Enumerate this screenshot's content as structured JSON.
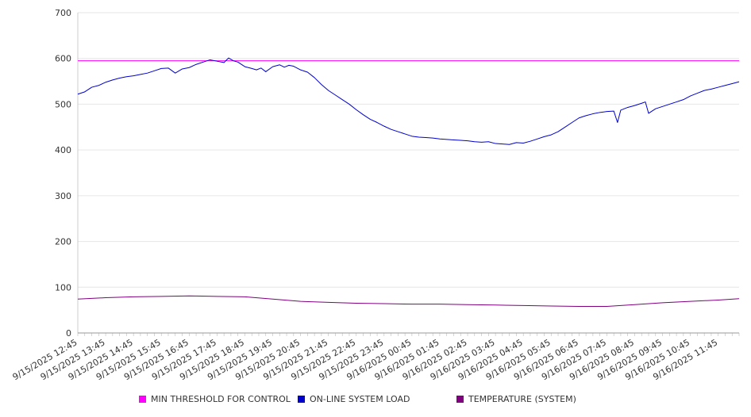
{
  "chart_data": {
    "type": "line",
    "title": "",
    "xlabel": "",
    "ylabel": "",
    "ylim": [
      0,
      700
    ],
    "y_ticks": [
      0,
      100,
      200,
      300,
      400,
      500,
      600,
      700
    ],
    "x_start": "9/15/2025 12:45",
    "x_end": "9/16/2025 12:30",
    "x_tick_labels": [
      "9/15/2025 12:45",
      "9/15/2025 13:45",
      "9/15/2025 14:45",
      "9/15/2025 15:45",
      "9/15/2025 16:45",
      "9/15/2025 17:45",
      "9/15/2025 18:45",
      "9/15/2025 19:45",
      "9/15/2025 20:45",
      "9/15/2025 21:45",
      "9/15/2025 22:45",
      "9/15/2025 23:45",
      "9/16/2025 00:45",
      "9/16/2025 01:45",
      "9/16/2025 02:45",
      "9/16/2025 03:45",
      "9/16/2025 04:45",
      "9/16/2025 05:45",
      "9/16/2025 06:45",
      "9/16/2025 07:45",
      "9/16/2025 08:45",
      "9/16/2025 09:45",
      "9/16/2025 10:45",
      "9/16/2025 11:45"
    ],
    "grid": true,
    "legend_position": "bottom",
    "series": [
      {
        "name": "MIN THRESHOLD FOR CONTROL",
        "color": "#ff00ff",
        "points": [
          [
            "9/15/2025 12:45",
            595
          ],
          [
            "9/16/2025 12:30",
            595
          ]
        ]
      },
      {
        "name": "ON-LINE SYSTEM LOAD",
        "color": "#0000cc",
        "points": [
          [
            "9/15/2025 12:45",
            522
          ],
          [
            "9/15/2025 13:00",
            527
          ],
          [
            "9/15/2025 13:15",
            537
          ],
          [
            "9/15/2025 13:30",
            541
          ],
          [
            "9/15/2025 13:45",
            548
          ],
          [
            "9/15/2025 14:00",
            553
          ],
          [
            "9/15/2025 14:15",
            557
          ],
          [
            "9/15/2025 14:30",
            560
          ],
          [
            "9/15/2025 14:45",
            562
          ],
          [
            "9/15/2025 15:00",
            565
          ],
          [
            "9/15/2025 15:15",
            568
          ],
          [
            "9/15/2025 15:30",
            573
          ],
          [
            "9/15/2025 15:45",
            578
          ],
          [
            "9/15/2025 16:00",
            579
          ],
          [
            "9/15/2025 16:15",
            568
          ],
          [
            "9/15/2025 16:30",
            577
          ],
          [
            "9/15/2025 16:45",
            580
          ],
          [
            "9/15/2025 17:00",
            587
          ],
          [
            "9/15/2025 17:15",
            592
          ],
          [
            "9/15/2025 17:30",
            597
          ],
          [
            "9/15/2025 17:45",
            594
          ],
          [
            "9/15/2025 18:00",
            591
          ],
          [
            "9/15/2025 18:10",
            601
          ],
          [
            "9/15/2025 18:20",
            595
          ],
          [
            "9/15/2025 18:30",
            592
          ],
          [
            "9/15/2025 18:45",
            582
          ],
          [
            "9/15/2025 19:00",
            578
          ],
          [
            "9/15/2025 19:10",
            575
          ],
          [
            "9/15/2025 19:20",
            579
          ],
          [
            "9/15/2025 19:30",
            571
          ],
          [
            "9/15/2025 19:45",
            582
          ],
          [
            "9/15/2025 20:00",
            586
          ],
          [
            "9/15/2025 20:10",
            581
          ],
          [
            "9/15/2025 20:20",
            585
          ],
          [
            "9/15/2025 20:30",
            583
          ],
          [
            "9/15/2025 20:45",
            575
          ],
          [
            "9/15/2025 21:00",
            570
          ],
          [
            "9/15/2025 21:15",
            558
          ],
          [
            "9/15/2025 21:30",
            543
          ],
          [
            "9/15/2025 21:45",
            530
          ],
          [
            "9/15/2025 22:00",
            520
          ],
          [
            "9/15/2025 22:15",
            510
          ],
          [
            "9/15/2025 22:30",
            500
          ],
          [
            "9/15/2025 22:45",
            488
          ],
          [
            "9/15/2025 23:00",
            477
          ],
          [
            "9/15/2025 23:15",
            467
          ],
          [
            "9/15/2025 23:30",
            460
          ],
          [
            "9/15/2025 23:45",
            452
          ],
          [
            "9/16/2025 00:00",
            445
          ],
          [
            "9/16/2025 00:15",
            440
          ],
          [
            "9/16/2025 00:30",
            435
          ],
          [
            "9/16/2025 00:45",
            430
          ],
          [
            "9/16/2025 01:00",
            428
          ],
          [
            "9/16/2025 01:15",
            427
          ],
          [
            "9/16/2025 01:30",
            426
          ],
          [
            "9/16/2025 01:45",
            424
          ],
          [
            "9/16/2025 02:00",
            423
          ],
          [
            "9/16/2025 02:15",
            422
          ],
          [
            "9/16/2025 02:30",
            421
          ],
          [
            "9/16/2025 02:45",
            420
          ],
          [
            "9/16/2025 03:00",
            418
          ],
          [
            "9/16/2025 03:15",
            417
          ],
          [
            "9/16/2025 03:30",
            418
          ],
          [
            "9/16/2025 03:45",
            414
          ],
          [
            "9/16/2025 04:00",
            413
          ],
          [
            "9/16/2025 04:15",
            412
          ],
          [
            "9/16/2025 04:30",
            416
          ],
          [
            "9/16/2025 04:45",
            415
          ],
          [
            "9/16/2025 05:00",
            419
          ],
          [
            "9/16/2025 05:15",
            424
          ],
          [
            "9/16/2025 05:30",
            429
          ],
          [
            "9/16/2025 05:45",
            433
          ],
          [
            "9/16/2025 06:00",
            440
          ],
          [
            "9/16/2025 06:15",
            450
          ],
          [
            "9/16/2025 06:30",
            460
          ],
          [
            "9/16/2025 06:45",
            470
          ],
          [
            "9/16/2025 07:00",
            475
          ],
          [
            "9/16/2025 07:15",
            479
          ],
          [
            "9/16/2025 07:30",
            482
          ],
          [
            "9/16/2025 07:45",
            484
          ],
          [
            "9/16/2025 08:00",
            485
          ],
          [
            "9/16/2025 08:08",
            460
          ],
          [
            "9/16/2025 08:15",
            487
          ],
          [
            "9/16/2025 08:30",
            493
          ],
          [
            "9/16/2025 08:45",
            497
          ],
          [
            "9/16/2025 09:00",
            502
          ],
          [
            "9/16/2025 09:08",
            505
          ],
          [
            "9/16/2025 09:15",
            480
          ],
          [
            "9/16/2025 09:30",
            490
          ],
          [
            "9/16/2025 09:45",
            495
          ],
          [
            "9/16/2025 10:00",
            500
          ],
          [
            "9/16/2025 10:15",
            505
          ],
          [
            "9/16/2025 10:30",
            510
          ],
          [
            "9/16/2025 10:45",
            518
          ],
          [
            "9/16/2025 11:00",
            524
          ],
          [
            "9/16/2025 11:15",
            530
          ],
          [
            "9/16/2025 11:30",
            533
          ],
          [
            "9/16/2025 11:45",
            537
          ],
          [
            "9/16/2025 12:00",
            541
          ],
          [
            "9/16/2025 12:15",
            545
          ],
          [
            "9/16/2025 12:30",
            549
          ]
        ]
      },
      {
        "name": "TEMPERATURE (SYSTEM)",
        "color": "#800080",
        "points": [
          [
            "9/15/2025 12:45",
            74
          ],
          [
            "9/15/2025 13:45",
            77
          ],
          [
            "9/15/2025 14:45",
            79
          ],
          [
            "9/15/2025 15:45",
            80
          ],
          [
            "9/15/2025 16:45",
            81
          ],
          [
            "9/15/2025 17:45",
            80
          ],
          [
            "9/15/2025 18:45",
            79
          ],
          [
            "9/15/2025 19:45",
            74
          ],
          [
            "9/15/2025 20:45",
            69
          ],
          [
            "9/15/2025 21:45",
            67
          ],
          [
            "9/15/2025 22:45",
            65
          ],
          [
            "9/15/2025 23:45",
            64
          ],
          [
            "9/16/2025 00:45",
            63
          ],
          [
            "9/16/2025 01:45",
            63
          ],
          [
            "9/16/2025 02:45",
            62
          ],
          [
            "9/16/2025 03:45",
            61
          ],
          [
            "9/16/2025 04:45",
            60
          ],
          [
            "9/16/2025 05:45",
            59
          ],
          [
            "9/16/2025 06:45",
            58
          ],
          [
            "9/16/2025 07:45",
            58
          ],
          [
            "9/16/2025 08:45",
            62
          ],
          [
            "9/16/2025 09:45",
            66
          ],
          [
            "9/16/2025 10:45",
            69
          ],
          [
            "9/16/2025 11:45",
            72
          ],
          [
            "9/16/2025 12:30",
            75
          ]
        ]
      }
    ]
  }
}
